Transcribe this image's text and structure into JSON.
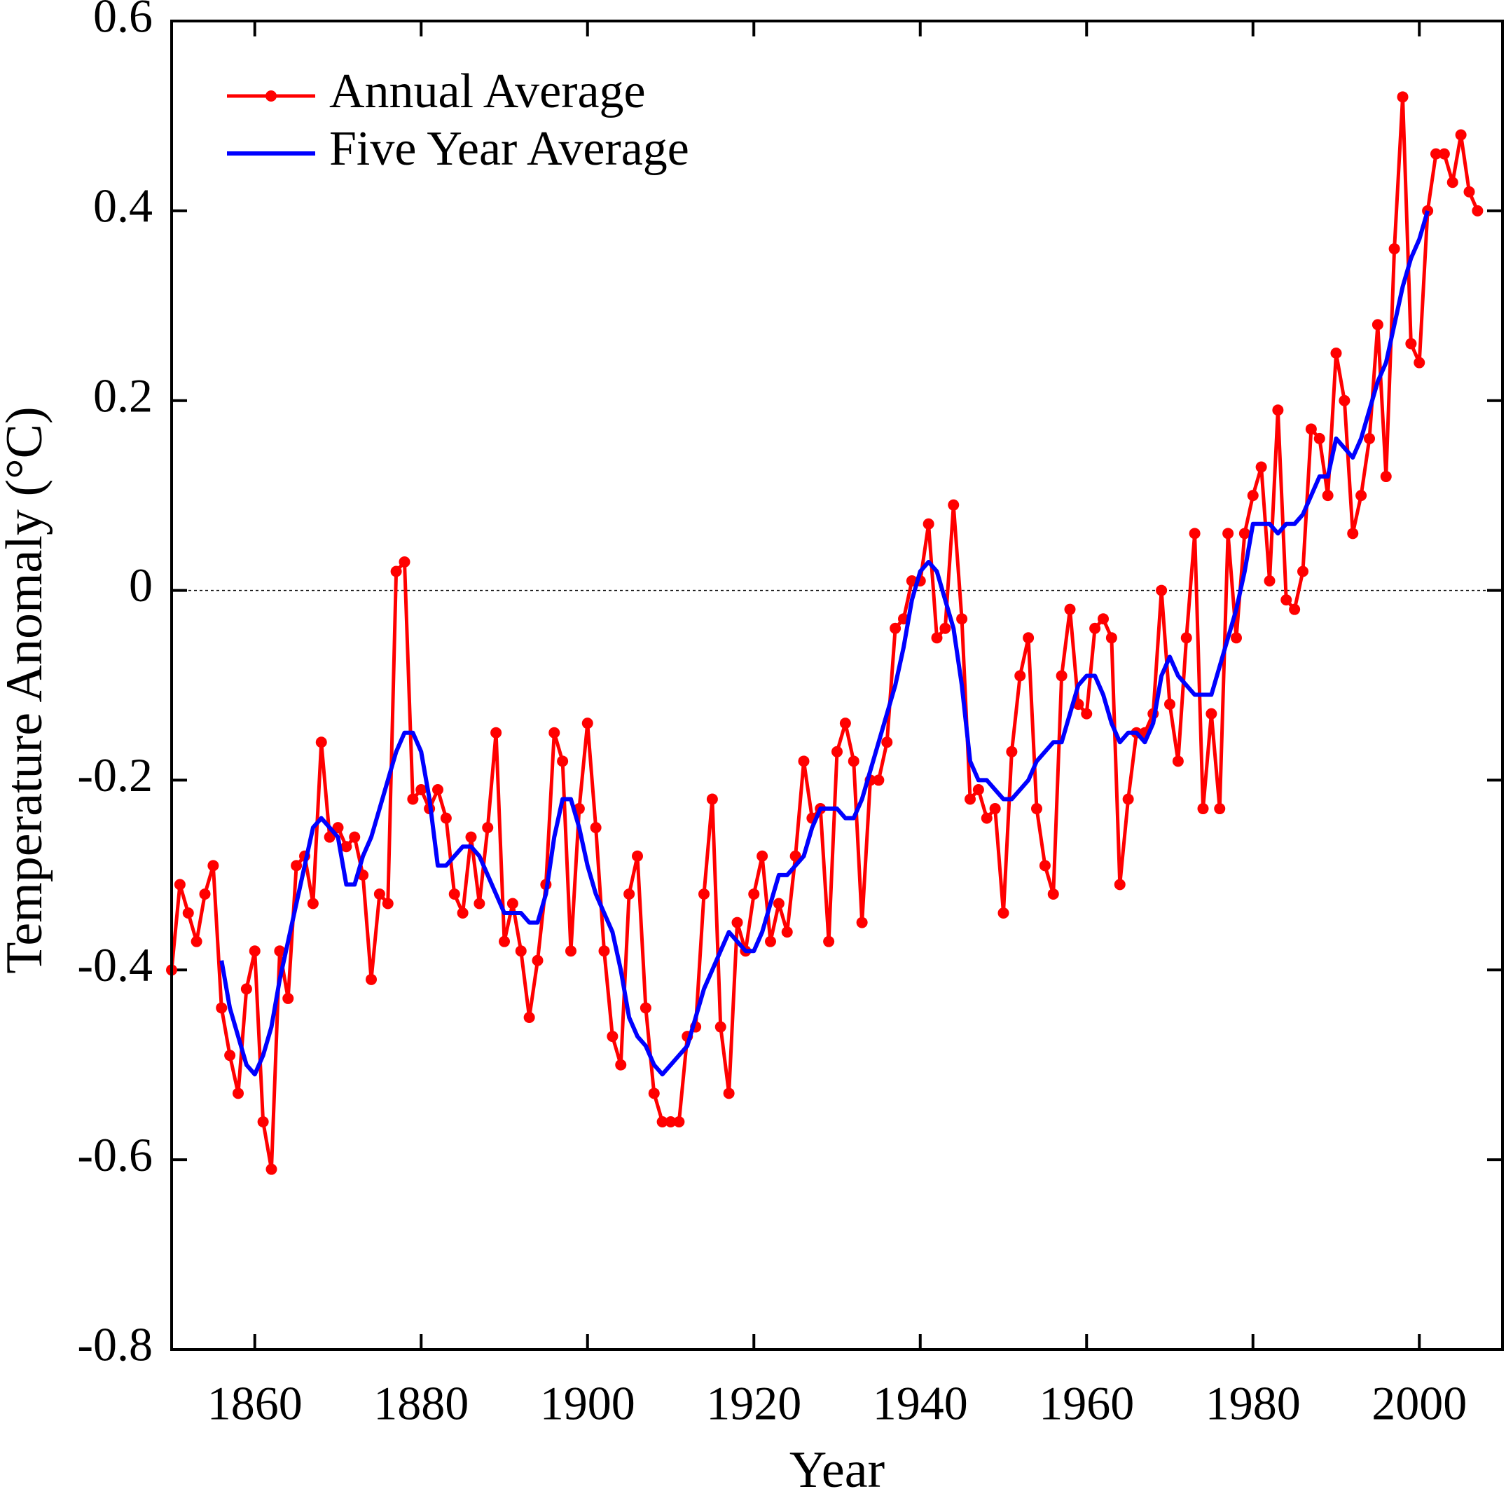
{
  "chart_data": {
    "type": "line",
    "x_label": "Year",
    "y_label": "Temperature Anomaly (°C)",
    "xlim": [
      1850,
      2010
    ],
    "ylim": [
      -0.8,
      0.6
    ],
    "xticks": [
      1860,
      1880,
      1900,
      1920,
      1940,
      1960,
      1980,
      2000
    ],
    "yticks": [
      -0.8,
      -0.6,
      -0.4,
      -0.2,
      0,
      0.2,
      0.4,
      0.6
    ],
    "zero_line": true,
    "legend": "upper left",
    "series": [
      {
        "name": "Annual Average",
        "color": "#ff0000",
        "markers": true,
        "x": [
          1850,
          1851,
          1852,
          1853,
          1854,
          1855,
          1856,
          1857,
          1858,
          1859,
          1860,
          1861,
          1862,
          1863,
          1864,
          1865,
          1866,
          1867,
          1868,
          1869,
          1870,
          1871,
          1872,
          1873,
          1874,
          1875,
          1876,
          1877,
          1878,
          1879,
          1880,
          1881,
          1882,
          1883,
          1884,
          1885,
          1886,
          1887,
          1888,
          1889,
          1890,
          1891,
          1892,
          1893,
          1894,
          1895,
          1896,
          1897,
          1898,
          1899,
          1900,
          1901,
          1902,
          1903,
          1904,
          1905,
          1906,
          1907,
          1908,
          1909,
          1910,
          1911,
          1912,
          1913,
          1914,
          1915,
          1916,
          1917,
          1918,
          1919,
          1920,
          1921,
          1922,
          1923,
          1924,
          1925,
          1926,
          1927,
          1928,
          1929,
          1930,
          1931,
          1932,
          1933,
          1934,
          1935,
          1936,
          1937,
          1938,
          1939,
          1940,
          1941,
          1942,
          1943,
          1944,
          1945,
          1946,
          1947,
          1948,
          1949,
          1950,
          1951,
          1952,
          1953,
          1954,
          1955,
          1956,
          1957,
          1958,
          1959,
          1960,
          1961,
          1962,
          1963,
          1964,
          1965,
          1966,
          1967,
          1968,
          1969,
          1970,
          1971,
          1972,
          1973,
          1974,
          1975,
          1976,
          1977,
          1978,
          1979,
          1980,
          1981,
          1982,
          1983,
          1984,
          1985,
          1986,
          1987,
          1988,
          1989,
          1990,
          1991,
          1992,
          1993,
          1994,
          1995,
          1996,
          1997,
          1998,
          1999,
          2000,
          2001,
          2002,
          2003,
          2004,
          2005,
          2006,
          2007
        ],
        "values": [
          -0.4,
          -0.31,
          -0.34,
          -0.37,
          -0.32,
          -0.29,
          -0.44,
          -0.49,
          -0.53,
          -0.42,
          -0.38,
          -0.56,
          -0.61,
          -0.38,
          -0.43,
          -0.29,
          -0.28,
          -0.33,
          -0.16,
          -0.26,
          -0.25,
          -0.27,
          -0.26,
          -0.3,
          -0.41,
          -0.32,
          -0.33,
          0.02,
          0.03,
          -0.22,
          -0.21,
          -0.23,
          -0.21,
          -0.24,
          -0.32,
          -0.34,
          -0.26,
          -0.33,
          -0.25,
          -0.15,
          -0.37,
          -0.33,
          -0.38,
          -0.45,
          -0.39,
          -0.31,
          -0.15,
          -0.18,
          -0.38,
          -0.23,
          -0.14,
          -0.25,
          -0.38,
          -0.47,
          -0.5,
          -0.32,
          -0.28,
          -0.44,
          -0.53,
          -0.56,
          -0.56,
          -0.56,
          -0.47,
          -0.46,
          -0.32,
          -0.22,
          -0.46,
          -0.53,
          -0.35,
          -0.38,
          -0.32,
          -0.28,
          -0.37,
          -0.33,
          -0.36,
          -0.28,
          -0.18,
          -0.24,
          -0.23,
          -0.37,
          -0.17,
          -0.14,
          -0.18,
          -0.35,
          -0.2,
          -0.2,
          -0.16,
          -0.04,
          -0.03,
          0.01,
          0.01,
          0.07,
          -0.05,
          -0.04,
          0.09,
          -0.03,
          -0.22,
          -0.21,
          -0.24,
          -0.23,
          -0.34,
          -0.17,
          -0.09,
          -0.05,
          -0.23,
          -0.29,
          -0.32,
          -0.09,
          -0.02,
          -0.12,
          -0.13,
          -0.04,
          -0.03,
          -0.05,
          -0.31,
          -0.22,
          -0.15,
          -0.15,
          -0.13,
          0.0,
          -0.12,
          -0.18,
          -0.05,
          0.06,
          -0.23,
          -0.13,
          -0.23,
          0.06,
          -0.05,
          0.06,
          0.1,
          0.13,
          0.01,
          0.19,
          -0.01,
          -0.02,
          0.02,
          0.17,
          0.16,
          0.1,
          0.25,
          0.2,
          0.06,
          0.1,
          0.16,
          0.28,
          0.12,
          0.36,
          0.52,
          0.26,
          0.24,
          0.4,
          0.46,
          0.46,
          0.43,
          0.48,
          0.42,
          0.4
        ]
      },
      {
        "name": "Five Year Average",
        "color": "#0000ff",
        "markers": false,
        "x": [
          1856,
          1857,
          1858,
          1859,
          1860,
          1861,
          1862,
          1863,
          1864,
          1865,
          1866,
          1867,
          1868,
          1869,
          1870,
          1871,
          1872,
          1873,
          1874,
          1875,
          1876,
          1877,
          1878,
          1879,
          1880,
          1881,
          1882,
          1883,
          1884,
          1885,
          1886,
          1887,
          1888,
          1889,
          1890,
          1891,
          1892,
          1893,
          1894,
          1895,
          1896,
          1897,
          1898,
          1899,
          1900,
          1901,
          1902,
          1903,
          1904,
          1905,
          1906,
          1907,
          1908,
          1909,
          1910,
          1911,
          1912,
          1913,
          1914,
          1915,
          1916,
          1917,
          1918,
          1919,
          1920,
          1921,
          1922,
          1923,
          1924,
          1925,
          1926,
          1927,
          1928,
          1929,
          1930,
          1931,
          1932,
          1933,
          1934,
          1935,
          1936,
          1937,
          1938,
          1939,
          1940,
          1941,
          1942,
          1943,
          1944,
          1945,
          1946,
          1947,
          1948,
          1949,
          1950,
          1951,
          1952,
          1953,
          1954,
          1955,
          1956,
          1957,
          1958,
          1959,
          1960,
          1961,
          1962,
          1963,
          1964,
          1965,
          1966,
          1967,
          1968,
          1969,
          1970,
          1971,
          1972,
          1973,
          1974,
          1975,
          1976,
          1977,
          1978,
          1979,
          1980,
          1981,
          1982,
          1983,
          1984,
          1985,
          1986,
          1987,
          1988,
          1989,
          1990,
          1991,
          1992,
          1993,
          1994,
          1995,
          1996,
          1997,
          1998,
          1999,
          2000,
          2001
        ],
        "values": [
          -0.39,
          -0.44,
          -0.47,
          -0.5,
          -0.51,
          -0.49,
          -0.46,
          -0.41,
          -0.37,
          -0.33,
          -0.29,
          -0.25,
          -0.24,
          -0.25,
          -0.26,
          -0.31,
          -0.31,
          -0.28,
          -0.26,
          -0.23,
          -0.2,
          -0.17,
          -0.15,
          -0.15,
          -0.17,
          -0.22,
          -0.29,
          -0.29,
          -0.28,
          -0.27,
          -0.27,
          -0.28,
          -0.3,
          -0.32,
          -0.34,
          -0.34,
          -0.34,
          -0.35,
          -0.35,
          -0.32,
          -0.26,
          -0.22,
          -0.22,
          -0.25,
          -0.29,
          -0.32,
          -0.34,
          -0.36,
          -0.4,
          -0.45,
          -0.47,
          -0.48,
          -0.5,
          -0.51,
          -0.5,
          -0.49,
          -0.48,
          -0.45,
          -0.42,
          -0.4,
          -0.38,
          -0.36,
          -0.37,
          -0.38,
          -0.38,
          -0.36,
          -0.33,
          -0.3,
          -0.3,
          -0.29,
          -0.28,
          -0.25,
          -0.23,
          -0.23,
          -0.23,
          -0.24,
          -0.24,
          -0.22,
          -0.19,
          -0.16,
          -0.13,
          -0.1,
          -0.06,
          -0.01,
          0.02,
          0.03,
          0.02,
          -0.01,
          -0.04,
          -0.1,
          -0.18,
          -0.2,
          -0.2,
          -0.21,
          -0.22,
          -0.22,
          -0.21,
          -0.2,
          -0.18,
          -0.17,
          -0.16,
          -0.16,
          -0.13,
          -0.1,
          -0.09,
          -0.09,
          -0.11,
          -0.14,
          -0.16,
          -0.15,
          -0.15,
          -0.16,
          -0.14,
          -0.09,
          -0.07,
          -0.09,
          -0.1,
          -0.11,
          -0.11,
          -0.11,
          -0.08,
          -0.05,
          -0.02,
          0.02,
          0.07,
          0.07,
          0.07,
          0.06,
          0.07,
          0.07,
          0.08,
          0.1,
          0.12,
          0.12,
          0.16,
          0.15,
          0.14,
          0.16,
          0.19,
          0.22,
          0.24,
          0.28,
          0.32,
          0.35,
          0.37,
          0.4
        ]
      }
    ]
  }
}
